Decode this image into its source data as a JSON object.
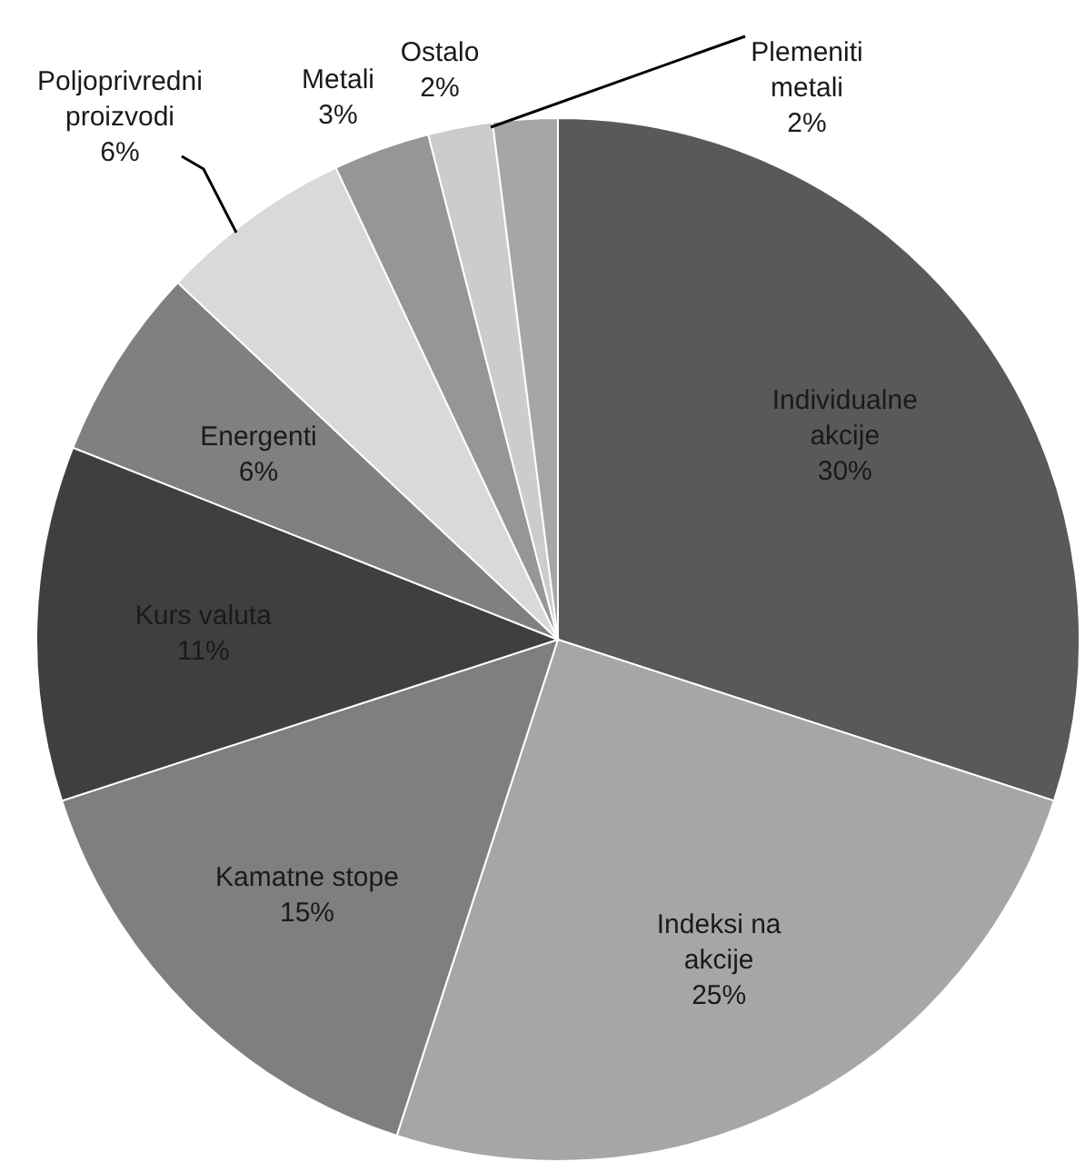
{
  "chart_data": {
    "type": "pie",
    "categories": [
      "Individualne\nakcije",
      "Indeksi na\nakcije",
      "Kamatne stope",
      "Kurs valuta",
      "Energenti",
      "Poljoprivredni\nproizvodi",
      "Metali",
      "Ostalo",
      "Plemeniti\nmetali"
    ],
    "values": [
      30,
      25,
      15,
      11,
      6,
      6,
      3,
      2,
      2
    ],
    "colors": [
      "#595959",
      "#a6a6a6",
      "#7f7f7f",
      "#3f3f3f",
      "#808080",
      "#d9d9d9",
      "#969696",
      "#cccccc",
      "#a6a6a6"
    ],
    "value_labels": [
      "30%",
      "25%",
      "15%",
      "11%",
      "6%",
      "6%",
      "3%",
      "2%",
      "2%"
    ]
  }
}
